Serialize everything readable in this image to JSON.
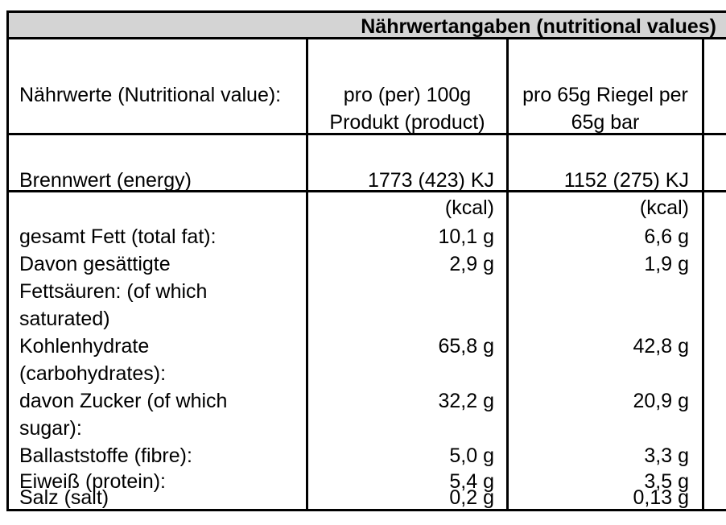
{
  "title": "Nährwertangaben (nutritional values)",
  "header": {
    "col1": "Nährwerte (Nutritional value):",
    "col2": "pro (per) 100g Produkt (product)",
    "col3": "pro 65g Riegel per 65g bar"
  },
  "energy": {
    "label": "Brennwert (energy)",
    "per100": "1773 (423) KJ (kcal)",
    "per65": "1152 (275) KJ (kcal)"
  },
  "rows": [
    {
      "label": "gesamt Fett (total fat):",
      "per100": "10,1 g",
      "per65": "6,6 g"
    },
    {
      "label": "Davon gesättigte Fettsäuren: (of which saturated)",
      "per100": "2,9 g",
      "per65": "1,9 g"
    },
    {
      "label": "Kohlenhydrate (carbohydrates):",
      "per100": "65,8 g",
      "per65": "42,8 g"
    },
    {
      "label": "davon Zucker (of which sugar):",
      "per100": "32,2 g",
      "per65": "20,9 g"
    },
    {
      "label": "Ballaststoffe (fibre):",
      "per100": "5,0 g",
      "per65": "3,3 g"
    },
    {
      "label": "Eiweiß (protein):",
      "per100": "5,4 g",
      "per65": "3,5 g"
    },
    {
      "label": "Salz (salt)",
      "per100": "0,2 g",
      "per65": "0,13 g"
    }
  ]
}
